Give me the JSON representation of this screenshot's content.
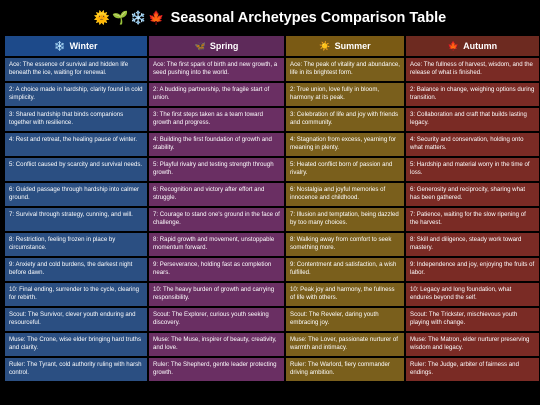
{
  "title": {
    "icons": [
      "🌞",
      "🌱",
      "❄️",
      "🍁"
    ],
    "text": "Seasonal Archetypes Comparison Table"
  },
  "columns": [
    {
      "icon": "❄️",
      "label": "Winter",
      "color": "#1d4a8a",
      "cell_color": "#2b4f82"
    },
    {
      "icon": "🦋",
      "label": "Spring",
      "color": "#5e2a5a",
      "cell_color": "#6a2f63"
    },
    {
      "icon": "☀️",
      "label": "Summer",
      "color": "#7a5a14",
      "cell_color": "#7a5f1c"
    },
    {
      "icon": "🍁",
      "label": "Autumn",
      "color": "#6d2a20",
      "cell_color": "#7a2b25"
    }
  ],
  "rows": [
    [
      "Ace: The essence of survival and hidden life beneath the ice, waiting for renewal.",
      "Ace: The first spark of birth and new growth, a seed pushing into the world.",
      "Ace: The peak of vitality and abundance, life in its brightest form.",
      "Ace: The fullness of harvest, wisdom, and the release of what is finished."
    ],
    [
      "2: A choice made in hardship, clarity found in cold simplicity.",
      "2: A budding partnership, the fragile start of union.",
      "2: True union, love fully in bloom, harmony at its peak.",
      "2: Balance in change, weighing options during transition."
    ],
    [
      "3: Shared hardship that binds companions together with resilience.",
      "3: The first steps taken as a team toward growth and progress.",
      "3: Celebration of life and joy with friends and community.",
      "3: Collaboration and craft that builds lasting legacy."
    ],
    [
      "4: Rest and retreat, the healing pause of winter.",
      "4: Building the first foundation of growth and stability.",
      "4: Stagnation from excess, yearning for meaning in plenty.",
      "4: Security and conservation, holding onto what matters."
    ],
    [
      "5: Conflict caused by scarcity and survival needs.",
      "5: Playful rivalry and testing strength through growth.",
      "5: Heated conflict born of passion and rivalry.",
      "5: Hardship and material worry in the time of loss."
    ],
    [
      "6: Guided passage through hardship into calmer ground.",
      "6: Recognition and victory after effort and struggle.",
      "6: Nostalgia and joyful memories of innocence and childhood.",
      "6: Generosity and reciprocity, sharing what has been gathered."
    ],
    [
      "7: Survival through strategy, cunning, and will.",
      "7: Courage to stand one's ground in the face of challenge.",
      "7: Illusion and temptation, being dazzled by too many choices.",
      "7: Patience, waiting for the slow ripening of the harvest."
    ],
    [
      "8: Restriction, feeling frozen in place by circumstance.",
      "8: Rapid growth and movement, unstoppable momentum forward.",
      "8: Walking away from comfort to seek something more.",
      "8: Skill and diligence, steady work toward mastery."
    ],
    [
      "9: Anxiety and cold burdens, the darkest night before dawn.",
      "9: Perseverance, holding fast as completion nears.",
      "9: Contentment and satisfaction, a wish fulfilled.",
      "9: Independence and joy, enjoying the fruits of labor."
    ],
    [
      "10: Final ending, surrender to the cycle, clearing for rebirth.",
      "10: The heavy burden of growth and carrying responsibility.",
      "10: Peak joy and harmony, the fullness of life with others.",
      "10: Legacy and long foundation, what endures beyond the self."
    ],
    [
      "Scout: The Survivor, clever youth enduring and resourceful.",
      "Scout: The Explorer, curious youth seeking discovery.",
      "Scout: The Reveler, daring youth embracing joy.",
      "Scout: The Trickster, mischievous youth playing with change."
    ],
    [
      "Muse: The Crone, wise elder bringing hard truths and clarity.",
      "Muse: The Muse, inspirer of beauty, creativity, and love.",
      "Muse: The Lover, passionate nurturer of warmth and intimacy.",
      "Muse: The Matron, elder nurturer preserving wisdom and legacy."
    ],
    [
      "Ruler: The Tyrant, cold authority ruling with harsh control.",
      "Ruler: The Shepherd, gentle leader protecting growth.",
      "Ruler: The Warlord, fiery commander driving ambition.",
      "Ruler: The Judge, arbiter of fairness and endings."
    ]
  ]
}
